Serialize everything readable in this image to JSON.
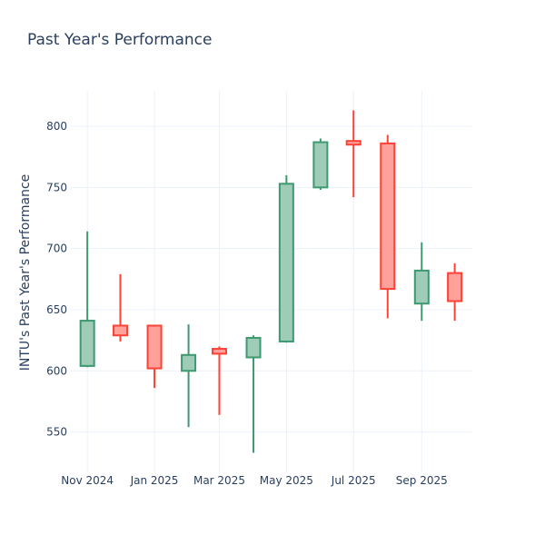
{
  "chart_data": {
    "type": "candlestick",
    "title": "Past Year's Performance",
    "xlabel": "",
    "ylabel": "INTU's Past Year's Performance",
    "ylim": [
      517,
      829
    ],
    "xlim": [
      "2024-10-17",
      "2025-10-17"
    ],
    "grid": true,
    "x_ticks": [
      {
        "date": "2024-11-01",
        "label": "Nov 2024"
      },
      {
        "date": "2025-01-01",
        "label": "Jan 2025"
      },
      {
        "date": "2025-03-01",
        "label": "Mar 2025"
      },
      {
        "date": "2025-05-01",
        "label": "May 2025"
      },
      {
        "date": "2025-07-01",
        "label": "Jul 2025"
      },
      {
        "date": "2025-09-01",
        "label": "Sep 2025"
      }
    ],
    "y_ticks": [
      550,
      600,
      650,
      700,
      750,
      800
    ],
    "increasing_color": "#3d9970",
    "decreasing_color": "#ff4136",
    "candles": [
      {
        "date": "2024-11-01",
        "open": 604,
        "high": 714,
        "low": 603,
        "close": 641
      },
      {
        "date": "2024-12-01",
        "open": 637,
        "high": 679,
        "low": 624,
        "close": 629
      },
      {
        "date": "2025-01-01",
        "open": 637,
        "high": 637,
        "low": 586,
        "close": 602
      },
      {
        "date": "2025-02-01",
        "open": 600,
        "high": 638,
        "low": 554,
        "close": 613
      },
      {
        "date": "2025-03-01",
        "open": 618,
        "high": 620,
        "low": 564,
        "close": 614
      },
      {
        "date": "2025-04-01",
        "open": 611,
        "high": 629,
        "low": 533,
        "close": 627
      },
      {
        "date": "2025-05-01",
        "open": 624,
        "high": 760,
        "low": 623,
        "close": 753
      },
      {
        "date": "2025-06-01",
        "open": 750,
        "high": 790,
        "low": 748,
        "close": 787
      },
      {
        "date": "2025-07-01",
        "open": 788,
        "high": 813,
        "low": 742,
        "close": 785
      },
      {
        "date": "2025-08-01",
        "open": 786,
        "high": 793,
        "low": 643,
        "close": 667
      },
      {
        "date": "2025-09-01",
        "open": 655,
        "high": 705,
        "low": 641,
        "close": 682
      },
      {
        "date": "2025-10-01",
        "open": 680,
        "high": 688,
        "low": 641,
        "close": 657
      }
    ]
  }
}
